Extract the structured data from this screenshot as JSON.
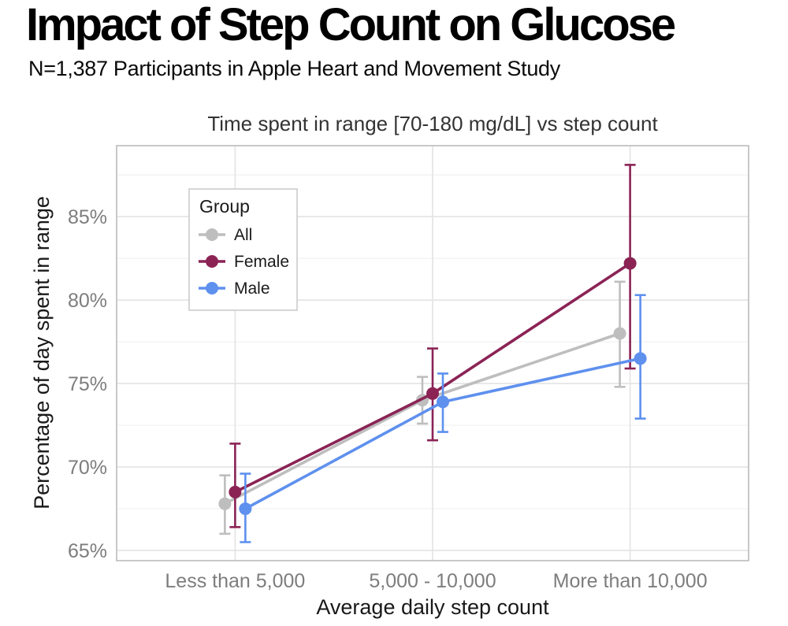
{
  "header": {
    "title": "Impact of Step Count on Glucose",
    "subtitle": "N=1,387 Participants in Apple Heart and Movement Study"
  },
  "chart_data": {
    "type": "line",
    "title": "Time spent in range [70-180 mg/dL] vs step count",
    "xlabel": "Average daily step count",
    "ylabel": "Percentage of day spent in range",
    "categories": [
      "Less than 5,000",
      "5,000 - 10,000",
      "More than 10,000"
    ],
    "series": [
      {
        "name": "All",
        "color": "#BEBEBE",
        "values": [
          67.8,
          74.0,
          78.0
        ],
        "ci_low": [
          66.0,
          72.6,
          74.8
        ],
        "ci_high": [
          69.5,
          75.4,
          81.1
        ]
      },
      {
        "name": "Female",
        "color": "#8B2355",
        "values": [
          68.5,
          74.4,
          82.2
        ],
        "ci_low": [
          66.4,
          71.6,
          75.9
        ],
        "ci_high": [
          71.4,
          77.1,
          88.1
        ]
      },
      {
        "name": "Male",
        "color": "#5E90EE",
        "values": [
          67.5,
          73.9,
          76.5
        ],
        "ci_low": [
          65.5,
          72.1,
          72.9
        ],
        "ci_high": [
          69.6,
          75.6,
          80.3
        ]
      }
    ],
    "y_major_ticks": [
      65,
      70,
      75,
      80,
      85
    ],
    "y_tick_labels": [
      "65%",
      "70%",
      "75%",
      "80%",
      "85%"
    ],
    "y_minor_ticks": [
      67.5,
      72.5,
      77.5,
      82.5,
      87.5
    ],
    "ylim": [
      64.39,
      89.25
    ],
    "grid": true,
    "legend": {
      "title": "Group",
      "position": "upper-left-inside"
    },
    "panel": {
      "background": "#ffffff",
      "border_color": "#c8c8c8",
      "grid_major_color": "#e3e3e3",
      "grid_minor_color": "#f0f0f0"
    }
  }
}
